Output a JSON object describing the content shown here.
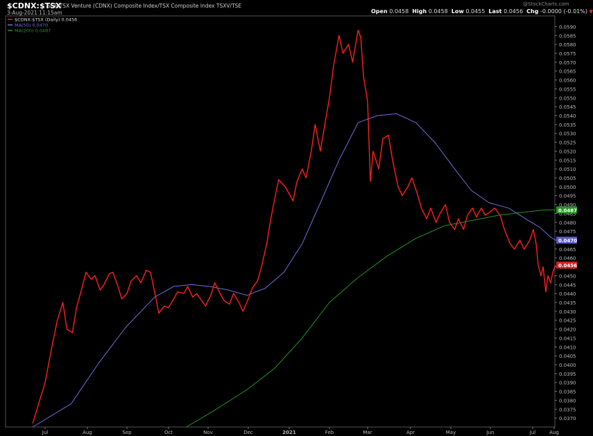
{
  "header": {
    "symbol": "$CDNX:$TSX",
    "description": "S&P/TSX Venture (CDNX) Composite Index/TSX Composite Index  TSXV/TSE",
    "timestamp": "3-Aug-2021 11:15am",
    "watermark": "@StockCharts.com",
    "ohlc": {
      "open_label": "Open",
      "open": "0.0458",
      "high_label": "High",
      "high": "0.0458",
      "low_label": "Low",
      "low": "0.0455",
      "last_label": "Last",
      "last": "0.0456",
      "chg_label": "Chg",
      "chg": "-0.0000 (-0.01%)"
    }
  },
  "chart_data": {
    "type": "line",
    "title": "$CDNX:$TSX",
    "x_ticks": [
      "Jul",
      "Aug",
      "Sep",
      "Oct",
      "Nov",
      "Dec",
      "2021",
      "Feb",
      "Mar",
      "Apr",
      "May",
      "Jun",
      "Jul",
      "Aug"
    ],
    "y_ticks": [
      "0.0590",
      "0.0585",
      "0.0580",
      "0.0575",
      "0.0570",
      "0.0565",
      "0.0560",
      "0.0555",
      "0.0550",
      "0.0545",
      "0.0540",
      "0.0535",
      "0.0530",
      "0.0525",
      "0.0520",
      "0.0515",
      "0.0510",
      "0.0505",
      "0.0500",
      "0.0495",
      "0.0490",
      "0.0485",
      "0.0480",
      "0.0475",
      "0.0470",
      "0.0465",
      "0.0460",
      "0.0455",
      "0.0450",
      "0.0445",
      "0.0440",
      "0.0435",
      "0.0430",
      "0.0425",
      "0.0420",
      "0.0415",
      "0.0410",
      "0.0405",
      "0.0400",
      "0.0395",
      "0.0390",
      "0.0385",
      "0.0380",
      "0.0375",
      "0.0370"
    ],
    "ylim": [
      0.0365,
      0.0596
    ],
    "legend": [
      {
        "label": "$CDNX:$TSX (Daily) 0.0456",
        "color": "#ff2020"
      },
      {
        "label": "MA(50) 0.0470",
        "color": "#7070dd"
      },
      {
        "label": "MA(200) 0.0487",
        "color": "#229922"
      }
    ],
    "last_value_tags": [
      {
        "label": "0.0487",
        "value": 0.0487,
        "color": "#229922"
      },
      {
        "label": "0.0470",
        "value": 0.047,
        "color": "#5a5ac8"
      },
      {
        "label": "0.0456",
        "value": 0.0456,
        "color": "#cc2222"
      }
    ],
    "series": [
      {
        "name": "$CDNX:$TSX (Daily)",
        "color": "#ff2020",
        "points": [
          [
            "2020-06-26",
            0.0367
          ],
          [
            "2020-07-01",
            0.039
          ],
          [
            "2020-07-06",
            0.041
          ],
          [
            "2020-07-10",
            0.0425
          ],
          [
            "2020-07-14",
            0.0435
          ],
          [
            "2020-07-17",
            0.042
          ],
          [
            "2020-07-21",
            0.0418
          ],
          [
            "2020-07-24",
            0.0432
          ],
          [
            "2020-07-28",
            0.0443
          ],
          [
            "2020-07-31",
            0.0452
          ],
          [
            "2020-08-04",
            0.0448
          ],
          [
            "2020-08-07",
            0.045
          ],
          [
            "2020-08-11",
            0.0442
          ],
          [
            "2020-08-14",
            0.0445
          ],
          [
            "2020-08-18",
            0.0451
          ],
          [
            "2020-08-21",
            0.0452
          ],
          [
            "2020-08-25",
            0.0444
          ],
          [
            "2020-08-28",
            0.0437
          ],
          [
            "2020-09-01",
            0.044
          ],
          [
            "2020-09-04",
            0.0447
          ],
          [
            "2020-09-08",
            0.045
          ],
          [
            "2020-09-11",
            0.0446
          ],
          [
            "2020-09-15",
            0.0453
          ],
          [
            "2020-09-18",
            0.0452
          ],
          [
            "2020-09-22",
            0.0437
          ],
          [
            "2020-09-24",
            0.0429
          ],
          [
            "2020-09-28",
            0.0433
          ],
          [
            "2020-10-01",
            0.0432
          ],
          [
            "2020-10-05",
            0.0437
          ],
          [
            "2020-10-08",
            0.0441
          ],
          [
            "2020-10-13",
            0.044
          ],
          [
            "2020-10-16",
            0.0444
          ],
          [
            "2020-10-20",
            0.0438
          ],
          [
            "2020-10-23",
            0.044
          ],
          [
            "2020-10-27",
            0.0436
          ],
          [
            "2020-10-30",
            0.0433
          ],
          [
            "2020-11-03",
            0.0439
          ],
          [
            "2020-11-06",
            0.0446
          ],
          [
            "2020-11-10",
            0.044
          ],
          [
            "2020-11-13",
            0.0436
          ],
          [
            "2020-11-17",
            0.0434
          ],
          [
            "2020-11-20",
            0.044
          ],
          [
            "2020-11-24",
            0.0435
          ],
          [
            "2020-11-27",
            0.043
          ],
          [
            "2020-12-01",
            0.0437
          ],
          [
            "2020-12-04",
            0.0443
          ],
          [
            "2020-12-08",
            0.0447
          ],
          [
            "2020-12-11",
            0.0455
          ],
          [
            "2020-12-15",
            0.0468
          ],
          [
            "2020-12-18",
            0.0482
          ],
          [
            "2020-12-22",
            0.0497
          ],
          [
            "2020-12-24",
            0.0504
          ],
          [
            "2020-12-29",
            0.05
          ],
          [
            "2021-01-04",
            0.0492
          ],
          [
            "2021-01-07",
            0.0503
          ],
          [
            "2021-01-11",
            0.051
          ],
          [
            "2021-01-14",
            0.0505
          ],
          [
            "2021-01-18",
            0.052
          ],
          [
            "2021-01-21",
            0.0535
          ],
          [
            "2021-01-25",
            0.052
          ],
          [
            "2021-01-28",
            0.0533
          ],
          [
            "2021-02-01",
            0.055
          ],
          [
            "2021-02-04",
            0.0568
          ],
          [
            "2021-02-08",
            0.0585
          ],
          [
            "2021-02-11",
            0.0575
          ],
          [
            "2021-02-15",
            0.058
          ],
          [
            "2021-02-18",
            0.057
          ],
          [
            "2021-02-22",
            0.0588
          ],
          [
            "2021-02-24",
            0.0584
          ],
          [
            "2021-02-26",
            0.0562
          ],
          [
            "2021-03-01",
            0.0548
          ],
          [
            "2021-03-03",
            0.0503
          ],
          [
            "2021-03-05",
            0.052
          ],
          [
            "2021-03-09",
            0.051
          ],
          [
            "2021-03-12",
            0.0527
          ],
          [
            "2021-03-16",
            0.0529
          ],
          [
            "2021-03-19",
            0.0515
          ],
          [
            "2021-03-23",
            0.05
          ],
          [
            "2021-03-26",
            0.0495
          ],
          [
            "2021-03-30",
            0.05
          ],
          [
            "2021-04-02",
            0.0505
          ],
          [
            "2021-04-06",
            0.0496
          ],
          [
            "2021-04-09",
            0.0488
          ],
          [
            "2021-04-13",
            0.0482
          ],
          [
            "2021-04-16",
            0.0488
          ],
          [
            "2021-04-20",
            0.048
          ],
          [
            "2021-04-23",
            0.0485
          ],
          [
            "2021-04-27",
            0.049
          ],
          [
            "2021-04-30",
            0.048
          ],
          [
            "2021-05-04",
            0.0476
          ],
          [
            "2021-05-07",
            0.0482
          ],
          [
            "2021-05-11",
            0.0476
          ],
          [
            "2021-05-14",
            0.0484
          ],
          [
            "2021-05-18",
            0.0488
          ],
          [
            "2021-05-21",
            0.0483
          ],
          [
            "2021-05-25",
            0.0488
          ],
          [
            "2021-05-28",
            0.0484
          ],
          [
            "2021-06-01",
            0.0486
          ],
          [
            "2021-06-04",
            0.0488
          ],
          [
            "2021-06-08",
            0.0484
          ],
          [
            "2021-06-11",
            0.0476
          ],
          [
            "2021-06-15",
            0.0468
          ],
          [
            "2021-06-18",
            0.0465
          ],
          [
            "2021-06-22",
            0.047
          ],
          [
            "2021-06-25",
            0.0465
          ],
          [
            "2021-06-29",
            0.047
          ],
          [
            "2021-07-02",
            0.0476
          ],
          [
            "2021-07-06",
            0.0468
          ],
          [
            "2021-07-09",
            0.0456
          ],
          [
            "2021-07-13",
            0.045
          ],
          [
            "2021-07-16",
            0.0455
          ],
          [
            "2021-07-20",
            0.0441
          ],
          [
            "2021-07-23",
            0.045
          ],
          [
            "2021-07-27",
            0.0446
          ],
          [
            "2021-07-30",
            0.0452
          ],
          [
            "2021-08-03",
            0.0456
          ]
        ]
      },
      {
        "name": "MA(50)",
        "color": "#7070dd",
        "points": [
          [
            "2020-06-26",
            0.0365
          ],
          [
            "2020-07-20",
            0.0378
          ],
          [
            "2020-08-10",
            0.0401
          ],
          [
            "2020-08-31",
            0.0421
          ],
          [
            "2020-09-21",
            0.0438
          ],
          [
            "2020-10-05",
            0.0444
          ],
          [
            "2020-10-19",
            0.0445
          ],
          [
            "2020-11-02",
            0.0444
          ],
          [
            "2020-11-16",
            0.0442
          ],
          [
            "2020-11-30",
            0.0439
          ],
          [
            "2020-12-14",
            0.0443
          ],
          [
            "2020-12-28",
            0.0452
          ],
          [
            "2021-01-11",
            0.0468
          ],
          [
            "2021-01-25",
            0.0491
          ],
          [
            "2021-02-08",
            0.0515
          ],
          [
            "2021-02-22",
            0.0536
          ],
          [
            "2021-03-08",
            0.054
          ],
          [
            "2021-03-22",
            0.0541
          ],
          [
            "2021-04-05",
            0.0536
          ],
          [
            "2021-04-19",
            0.0525
          ],
          [
            "2021-05-03",
            0.0511
          ],
          [
            "2021-05-17",
            0.0498
          ],
          [
            "2021-05-31",
            0.0491
          ],
          [
            "2021-06-14",
            0.0488
          ],
          [
            "2021-06-28",
            0.0481
          ],
          [
            "2021-07-12",
            0.0477
          ],
          [
            "2021-07-26",
            0.0472
          ],
          [
            "2021-08-03",
            0.047
          ]
        ]
      },
      {
        "name": "MA(200)",
        "color": "#229922",
        "points": [
          [
            "2020-10-15",
            0.0365
          ],
          [
            "2020-11-05",
            0.0374
          ],
          [
            "2020-11-30",
            0.0386
          ],
          [
            "2020-12-21",
            0.0398
          ],
          [
            "2021-01-11",
            0.0415
          ],
          [
            "2021-02-01",
            0.0435
          ],
          [
            "2021-02-22",
            0.0449
          ],
          [
            "2021-03-15",
            0.0461
          ],
          [
            "2021-04-05",
            0.0471
          ],
          [
            "2021-04-26",
            0.0478
          ],
          [
            "2021-05-17",
            0.0481
          ],
          [
            "2021-06-07",
            0.0484
          ],
          [
            "2021-06-28",
            0.0486
          ],
          [
            "2021-07-19",
            0.0487
          ],
          [
            "2021-08-03",
            0.0487
          ]
        ]
      }
    ]
  }
}
